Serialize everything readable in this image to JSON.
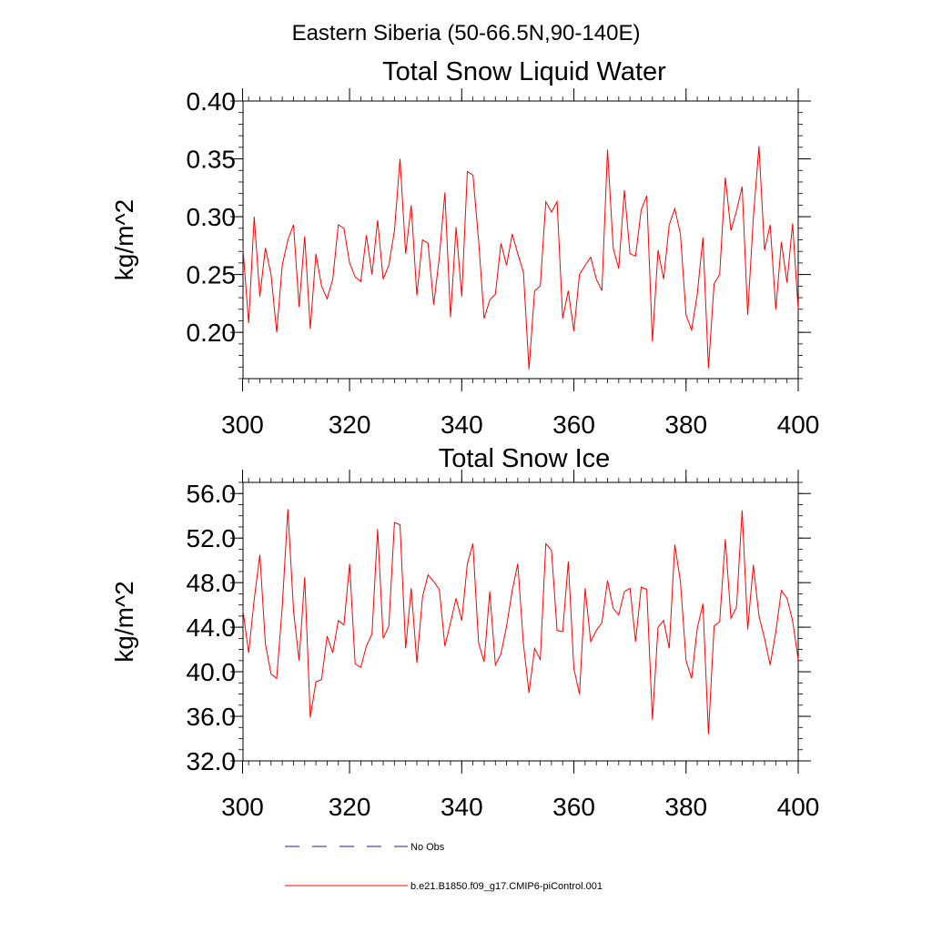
{
  "suptitle": "Eastern Siberia (50-66.5N,90-140E)",
  "legend": {
    "items": [
      {
        "label": "No Obs",
        "color": "#4a4aa8",
        "style": "dashed"
      },
      {
        "label": "b.e21.B1850.f09_g17.CMIP6-piControl.001",
        "color": "#ff0000",
        "style": "solid"
      }
    ]
  },
  "colors": {
    "series": "#ff0000",
    "axis": "#000000"
  },
  "chart_data": [
    {
      "type": "line",
      "title": "Total Snow Liquid Water",
      "xlabel": "",
      "ylabel": "kg/m^2",
      "xlim": [
        301,
        400
      ],
      "ylim": [
        0.16,
        0.4
      ],
      "xticks": [
        300,
        320,
        340,
        360,
        380,
        400
      ],
      "xtick_labels": [
        "300",
        "320",
        "340",
        "360",
        "380",
        "400"
      ],
      "yticks": [
        0.2,
        0.25,
        0.3,
        0.35,
        0.4
      ],
      "ytick_labels": [
        "0.20",
        "0.25",
        "0.30",
        "0.35",
        "0.40"
      ],
      "yminor_step": 0.01,
      "series": [
        {
          "name": "b.e21.B1850.f09_g17.CMIP6-piControl.001",
          "x_start": 301,
          "values": [
            0.272,
            0.208,
            0.3,
            0.231,
            0.273,
            0.25,
            0.2,
            0.258,
            0.28,
            0.293,
            0.222,
            0.283,
            0.203,
            0.268,
            0.24,
            0.229,
            0.246,
            0.293,
            0.29,
            0.26,
            0.248,
            0.244,
            0.284,
            0.25,
            0.297,
            0.246,
            0.258,
            0.288,
            0.35,
            0.268,
            0.31,
            0.232,
            0.28,
            0.277,
            0.224,
            0.265,
            0.321,
            0.213,
            0.291,
            0.231,
            0.339,
            0.336,
            0.28,
            0.212,
            0.228,
            0.233,
            0.277,
            0.258,
            0.285,
            0.268,
            0.252,
            0.168,
            0.236,
            0.24,
            0.313,
            0.304,
            0.313,
            0.212,
            0.236,
            0.201,
            0.25,
            0.258,
            0.265,
            0.246,
            0.236,
            0.358,
            0.273,
            0.255,
            0.323,
            0.268,
            0.266,
            0.306,
            0.318,
            0.192,
            0.271,
            0.246,
            0.293,
            0.307,
            0.285,
            0.215,
            0.202,
            0.233,
            0.282,
            0.169,
            0.242,
            0.25,
            0.334,
            0.288,
            0.305,
            0.326,
            0.215,
            0.299,
            0.361,
            0.271,
            0.293,
            0.22,
            0.278,
            0.243,
            0.294,
            0.22
          ]
        }
      ]
    },
    {
      "type": "line",
      "title": "Total Snow Ice",
      "xlabel": "",
      "ylabel": "kg/m^2",
      "xlim": [
        301,
        400
      ],
      "ylim": [
        32.0,
        57.0
      ],
      "xticks": [
        300,
        320,
        340,
        360,
        380,
        400
      ],
      "xtick_labels": [
        "300",
        "320",
        "340",
        "360",
        "380",
        "400"
      ],
      "yticks": [
        32.0,
        36.0,
        40.0,
        44.0,
        48.0,
        52.0,
        56.0
      ],
      "ytick_labels": [
        "32.0",
        "36.0",
        "40.0",
        "44.0",
        "48.0",
        "52.0",
        "56.0"
      ],
      "yminor_step": 1.0,
      "series": [
        {
          "name": "b.e21.B1850.f09_g17.CMIP6-piControl.001",
          "x_start": 301,
          "values": [
            45.5,
            41.7,
            46.5,
            50.5,
            42.5,
            39.8,
            39.4,
            45.8,
            54.6,
            45.5,
            41.0,
            48.5,
            35.9,
            39.1,
            39.3,
            43.2,
            41.7,
            44.6,
            44.2,
            49.7,
            40.7,
            40.4,
            42.3,
            43.4,
            52.8,
            43.0,
            44.1,
            53.4,
            53.2,
            42.1,
            47.5,
            40.8,
            46.7,
            48.7,
            48.1,
            47.4,
            42.3,
            44.4,
            46.6,
            44.6,
            49.7,
            51.5,
            42.6,
            40.9,
            47.2,
            40.6,
            41.6,
            44.1,
            47.3,
            49.7,
            42.5,
            38.1,
            42.1,
            41.1,
            51.5,
            50.9,
            43.7,
            43.6,
            49.9,
            40.3,
            38.0,
            47.5,
            42.7,
            43.7,
            44.4,
            48.2,
            45.7,
            45.1,
            47.2,
            47.5,
            42.7,
            47.6,
            47.4,
            35.7,
            44.0,
            44.6,
            42.1,
            51.4,
            48.1,
            41.0,
            39.4,
            43.9,
            46.1,
            34.4,
            44.1,
            44.5,
            51.9,
            44.8,
            45.8,
            54.5,
            43.8,
            49.6,
            45.0,
            43.0,
            40.6,
            43.6,
            47.3,
            46.6,
            44.6,
            41.1
          ]
        }
      ]
    }
  ]
}
